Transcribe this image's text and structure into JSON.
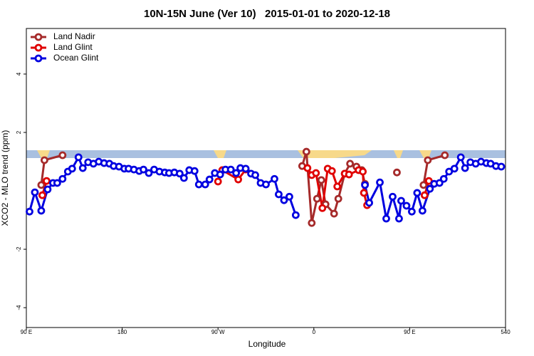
{
  "chart_data": {
    "type": "line",
    "title": "10N-15N June (Ver 10)   2015-01-01 to 2020-12-18",
    "x_label": "Longitude",
    "y_label": "XCO2 - MLO trend (ppm)",
    "xlim": [
      90,
      540
    ],
    "xticks": [
      {
        "value": 90,
        "label": "90 E"
      },
      180,
      {
        "value": 270,
        "label": "90 W"
      },
      {
        "value": 360,
        "label": "0"
      },
      {
        "value": 450,
        "label": "90 E"
      },
      540
    ],
    "ylim": [
      -4.68,
      5.56
    ],
    "yticks": [
      -4,
      -2,
      2,
      4
    ],
    "legend": "top-left",
    "series": [
      {
        "name": "Land Nadir",
        "color": "#a52a2a",
        "x": [
          104,
          107,
          124,
          200,
          349,
          353,
          358,
          363,
          367,
          371,
          379,
          383,
          389,
          394,
          400,
          405,
          408,
          420,
          438,
          450,
          463,
          467,
          483
        ],
        "values": [
          0.2,
          1.05,
          1.22,
          null,
          0.85,
          1.34,
          -1.1,
          -0.27,
          0.37,
          -0.46,
          -0.78,
          -0.27,
          0.59,
          0.93,
          0.83,
          0.71,
          0.24,
          null,
          0.63,
          null,
          0.2,
          1.05,
          1.22
        ]
      },
      {
        "name": "Land Glint",
        "color": "#e00000",
        "x": [
          105,
          109,
          200,
          270,
          274,
          289,
          296,
          320,
          354,
          358,
          362,
          368,
          373,
          377,
          382,
          389,
          393,
          402,
          406,
          407,
          410,
          440,
          464,
          468
        ],
        "values": [
          -0.15,
          0.34,
          null,
          0.32,
          0.71,
          0.39,
          0.73,
          null,
          0.78,
          0.54,
          0.61,
          -0.59,
          0.76,
          0.68,
          0.15,
          0.59,
          0.56,
          0.71,
          0.66,
          -0.07,
          -0.49,
          null,
          -0.15,
          0.34
        ]
      },
      {
        "name": "Ocean Glint",
        "color": "#0000e0",
        "x": [
          93,
          98,
          104,
          110,
          115,
          119,
          124,
          129,
          133,
          139,
          143,
          148,
          153,
          158,
          163,
          168,
          172,
          177,
          182,
          186,
          191,
          196,
          200,
          205,
          210,
          215,
          220,
          224,
          229,
          234,
          238,
          243,
          248,
          252,
          258,
          262,
          267,
          272,
          277,
          282,
          287,
          291,
          296,
          301,
          305,
          310,
          315,
          323,
          327,
          332,
          337,
          343,
          375,
          408,
          412,
          422,
          428,
          434,
          440,
          442,
          447,
          452,
          457,
          462,
          469,
          473,
          478,
          482,
          487,
          492,
          498,
          502,
          507,
          512,
          517,
          522,
          526,
          531,
          536
        ],
        "values": [
          -0.71,
          -0.05,
          -0.68,
          0.05,
          0.27,
          0.27,
          0.41,
          0.66,
          0.76,
          1.15,
          0.78,
          0.98,
          0.93,
          1.0,
          0.95,
          0.93,
          0.85,
          0.83,
          0.76,
          0.76,
          0.73,
          0.68,
          0.73,
          0.61,
          0.73,
          0.66,
          0.63,
          0.61,
          0.63,
          0.59,
          0.44,
          0.71,
          0.68,
          0.22,
          0.22,
          0.39,
          0.61,
          0.56,
          0.73,
          0.73,
          0.61,
          0.78,
          0.76,
          0.59,
          0.54,
          0.27,
          0.22,
          0.41,
          -0.12,
          -0.32,
          -0.2,
          -0.83,
          null,
          0.2,
          -0.41,
          0.29,
          -0.95,
          -0.2,
          -0.95,
          -0.34,
          -0.51,
          -0.71,
          -0.07,
          -0.68,
          0.07,
          0.24,
          0.27,
          0.41,
          0.66,
          0.76,
          1.15,
          0.78,
          0.98,
          0.93,
          1.0,
          0.95,
          0.93,
          0.85,
          0.83
        ]
      }
    ]
  }
}
